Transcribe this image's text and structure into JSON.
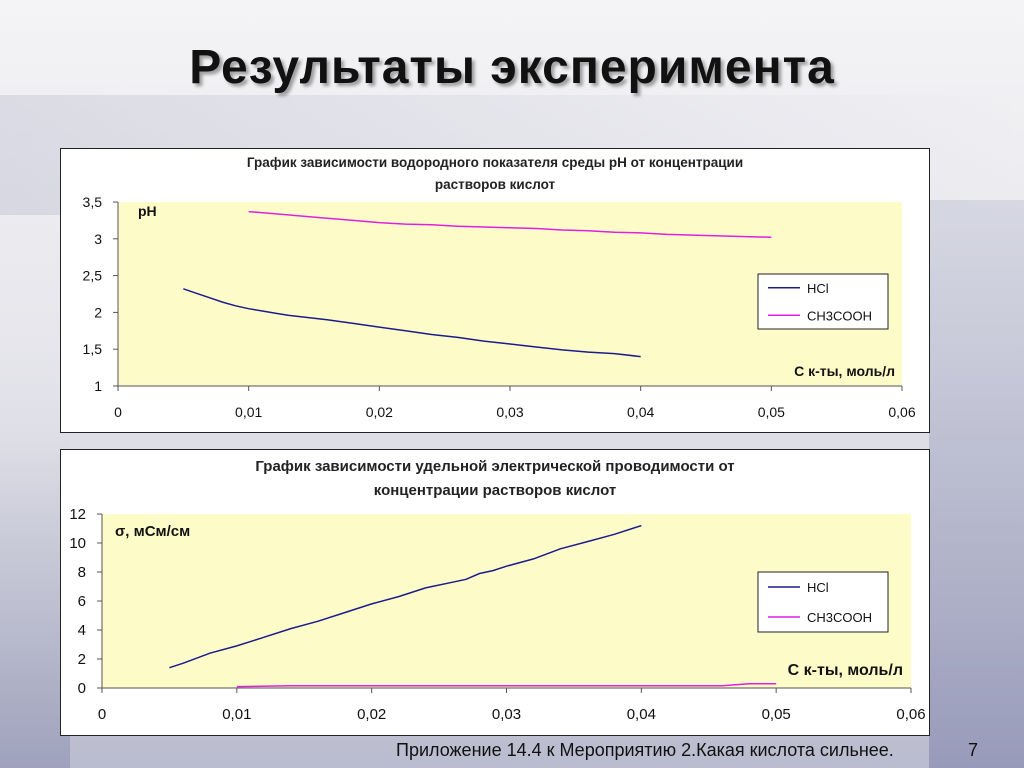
{
  "slide": {
    "title": "Результаты эксперимента",
    "footer": "Приложение 14.4 к  Мероприятию 2.Какая кислота сильнее.",
    "page_number": "7"
  },
  "colors": {
    "plot_bg": "#fdfcc9",
    "hcl": "#1c1c8c",
    "ch3cooh": "#e020e0",
    "axis": "#555555"
  },
  "chart_data": [
    {
      "type": "line",
      "title_lines": [
        "График зависимости водородного показателя среды pH от концентрации",
        "растворов кислот"
      ],
      "ylabel": "pH",
      "xlabel": "С к-ты, моль/л",
      "xlim": [
        0,
        0.06
      ],
      "ylim": [
        1,
        3.5
      ],
      "x_ticks": [
        "0",
        "0,01",
        "0,02",
        "0,03",
        "0,04",
        "0,05",
        "0,06"
      ],
      "x_tick_values": [
        0,
        0.01,
        0.02,
        0.03,
        0.04,
        0.05,
        0.06
      ],
      "y_ticks": [
        "1",
        "1,5",
        "2",
        "2,5",
        "3",
        "3,5"
      ],
      "y_tick_values": [
        1,
        1.5,
        2,
        2.5,
        3,
        3.5
      ],
      "grid": false,
      "legend_position": "right",
      "series": [
        {
          "name": "HCl",
          "color": "#1c1c8c",
          "x": [
            0.005,
            0.006,
            0.007,
            0.008,
            0.009,
            0.01,
            0.011,
            0.012,
            0.013,
            0.014,
            0.015,
            0.016,
            0.018,
            0.02,
            0.022,
            0.024,
            0.026,
            0.028,
            0.03,
            0.032,
            0.034,
            0.036,
            0.038,
            0.04
          ],
          "y": [
            2.32,
            2.26,
            2.2,
            2.14,
            2.09,
            2.05,
            2.02,
            1.99,
            1.96,
            1.94,
            1.92,
            1.9,
            1.85,
            1.8,
            1.75,
            1.7,
            1.66,
            1.61,
            1.57,
            1.53,
            1.49,
            1.46,
            1.44,
            1.4
          ]
        },
        {
          "name": "CH3COOH",
          "color": "#e020e0",
          "x": [
            0.01,
            0.012,
            0.014,
            0.016,
            0.018,
            0.02,
            0.022,
            0.024,
            0.026,
            0.028,
            0.03,
            0.032,
            0.034,
            0.036,
            0.038,
            0.04,
            0.042,
            0.044,
            0.046,
            0.048,
            0.05
          ],
          "y": [
            3.37,
            3.34,
            3.31,
            3.28,
            3.25,
            3.22,
            3.2,
            3.19,
            3.17,
            3.16,
            3.15,
            3.14,
            3.12,
            3.11,
            3.09,
            3.08,
            3.06,
            3.05,
            3.04,
            3.03,
            3.02
          ]
        }
      ]
    },
    {
      "type": "line",
      "title_lines": [
        "График зависимости удельной электрической проводимости от",
        "концентрации растворов кислот"
      ],
      "ylabel": "σ, мСм/см",
      "xlabel": "С к-ты, моль/л",
      "xlim": [
        0,
        0.06
      ],
      "ylim": [
        0,
        12
      ],
      "x_ticks": [
        "0",
        "0,01",
        "0,02",
        "0,03",
        "0,04",
        "0,05",
        "0,06"
      ],
      "x_tick_values": [
        0,
        0.01,
        0.02,
        0.03,
        0.04,
        0.05,
        0.06
      ],
      "y_ticks": [
        "0",
        "2",
        "4",
        "6",
        "8",
        "10",
        "12"
      ],
      "y_tick_values": [
        0,
        2,
        4,
        6,
        8,
        10,
        12
      ],
      "grid": false,
      "legend_position": "right",
      "series": [
        {
          "name": "HCl",
          "color": "#1c1c8c",
          "x": [
            0.005,
            0.006,
            0.008,
            0.01,
            0.012,
            0.014,
            0.016,
            0.018,
            0.02,
            0.022,
            0.024,
            0.026,
            0.027,
            0.028,
            0.029,
            0.03,
            0.032,
            0.034,
            0.036,
            0.038,
            0.04
          ],
          "y": [
            1.4,
            1.7,
            2.4,
            2.9,
            3.5,
            4.1,
            4.6,
            5.2,
            5.8,
            6.3,
            6.9,
            7.3,
            7.5,
            7.9,
            8.1,
            8.4,
            8.9,
            9.6,
            10.1,
            10.6,
            11.2
          ]
        },
        {
          "name": "CH3COOH",
          "color": "#e020e0",
          "x": [
            0.01,
            0.014,
            0.02,
            0.03,
            0.04,
            0.046,
            0.048,
            0.05
          ],
          "y": [
            0.1,
            0.15,
            0.15,
            0.15,
            0.15,
            0.15,
            0.3,
            0.3
          ]
        }
      ]
    }
  ]
}
